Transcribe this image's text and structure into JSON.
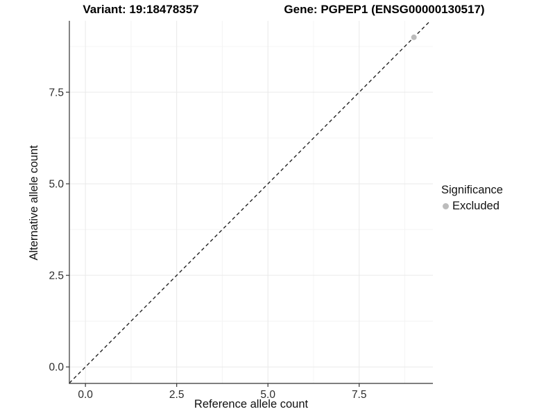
{
  "header": {
    "variant_title": "Variant: 19:18478357",
    "gene_title": "Gene: PGPEP1 (ENSG00000130517)"
  },
  "chart_data": {
    "type": "scatter",
    "xlabel": "Reference allele count",
    "ylabel": "Alternative allele count",
    "xlim": [
      -0.44,
      9.52
    ],
    "ylim": [
      -0.45,
      9.45
    ],
    "x_ticks": [
      0.0,
      2.5,
      5.0,
      7.5
    ],
    "y_ticks": [
      0.0,
      2.5,
      5.0,
      7.5
    ],
    "x_minor_ticks": [
      1.25,
      3.75,
      6.25,
      8.75
    ],
    "y_minor_ticks": [
      1.25,
      3.75,
      6.25,
      8.75
    ],
    "tick_decimals": 1,
    "grid": "major+minor",
    "legend_position": "right",
    "series": [
      {
        "name": "Excluded",
        "color": "#bcbcbc",
        "points": [
          [
            9,
            9
          ]
        ]
      }
    ],
    "reference_line": {
      "type": "identity",
      "slope": 1,
      "intercept": 0,
      "style": "dashed",
      "color": "#222222"
    },
    "legend": {
      "title": "Significance",
      "items": [
        {
          "label": "Excluded",
          "color": "#bcbcbc"
        }
      ]
    }
  },
  "style_colors": {
    "axis_line": "#333333",
    "tick_mark": "#333333",
    "tick_label": "#2b2b2b",
    "grid_major": "#e9e9e9",
    "grid_minor": "#f4f4f4",
    "background": "#ffffff"
  }
}
